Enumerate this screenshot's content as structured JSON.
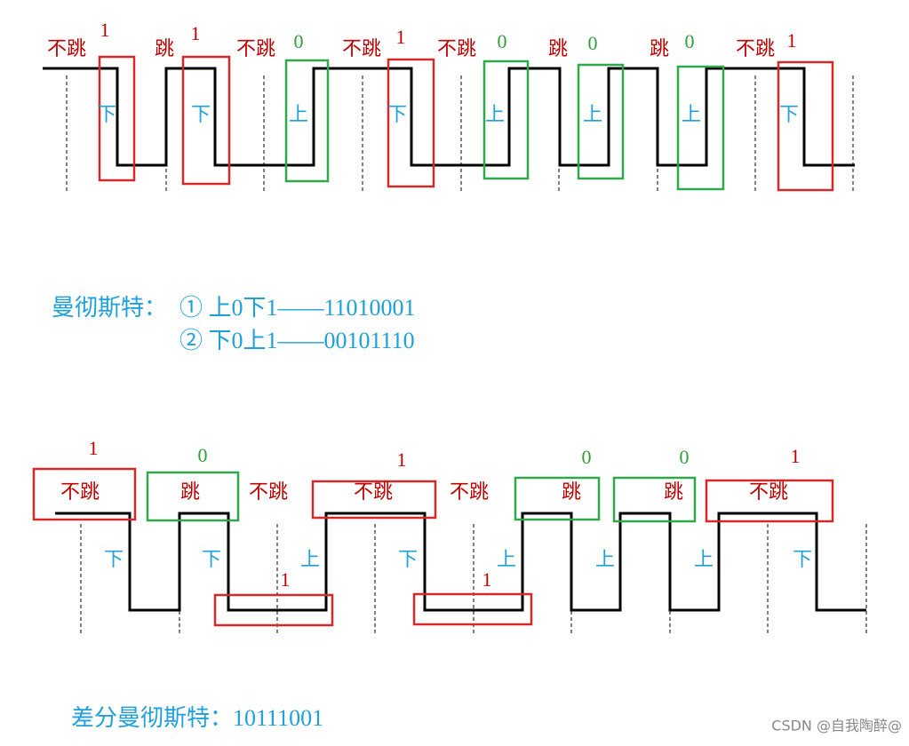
{
  "top_diagram": {
    "labels": [
      "不跳",
      "1",
      "跳",
      "1",
      "不跳",
      "0",
      "不跳",
      "1",
      "不跳",
      "0",
      "跳",
      "0",
      "跳",
      "0",
      "不跳",
      "1"
    ],
    "directions": [
      "下",
      "下",
      "上",
      "下",
      "上",
      "上",
      "上",
      "下"
    ]
  },
  "manchester": {
    "title": "曼彻斯特：",
    "lines": [
      "① 上0下1——11010001",
      "② 下0上1——00101110"
    ]
  },
  "bottom_diagram": {
    "labels": [
      "1",
      "不跳",
      "0",
      "跳",
      "不跳",
      "1",
      "不跳",
      "不跳",
      "0",
      "跳",
      "0",
      "跳",
      "1",
      "不跳"
    ],
    "directions": [
      "下",
      "下",
      "上",
      "下",
      "上",
      "上",
      "上",
      "下"
    ],
    "low_labels": [
      "1",
      "1"
    ]
  },
  "differential_manchester": "差分曼彻斯特：10111001",
  "watermark": "CSDN @自我陶醉@"
}
